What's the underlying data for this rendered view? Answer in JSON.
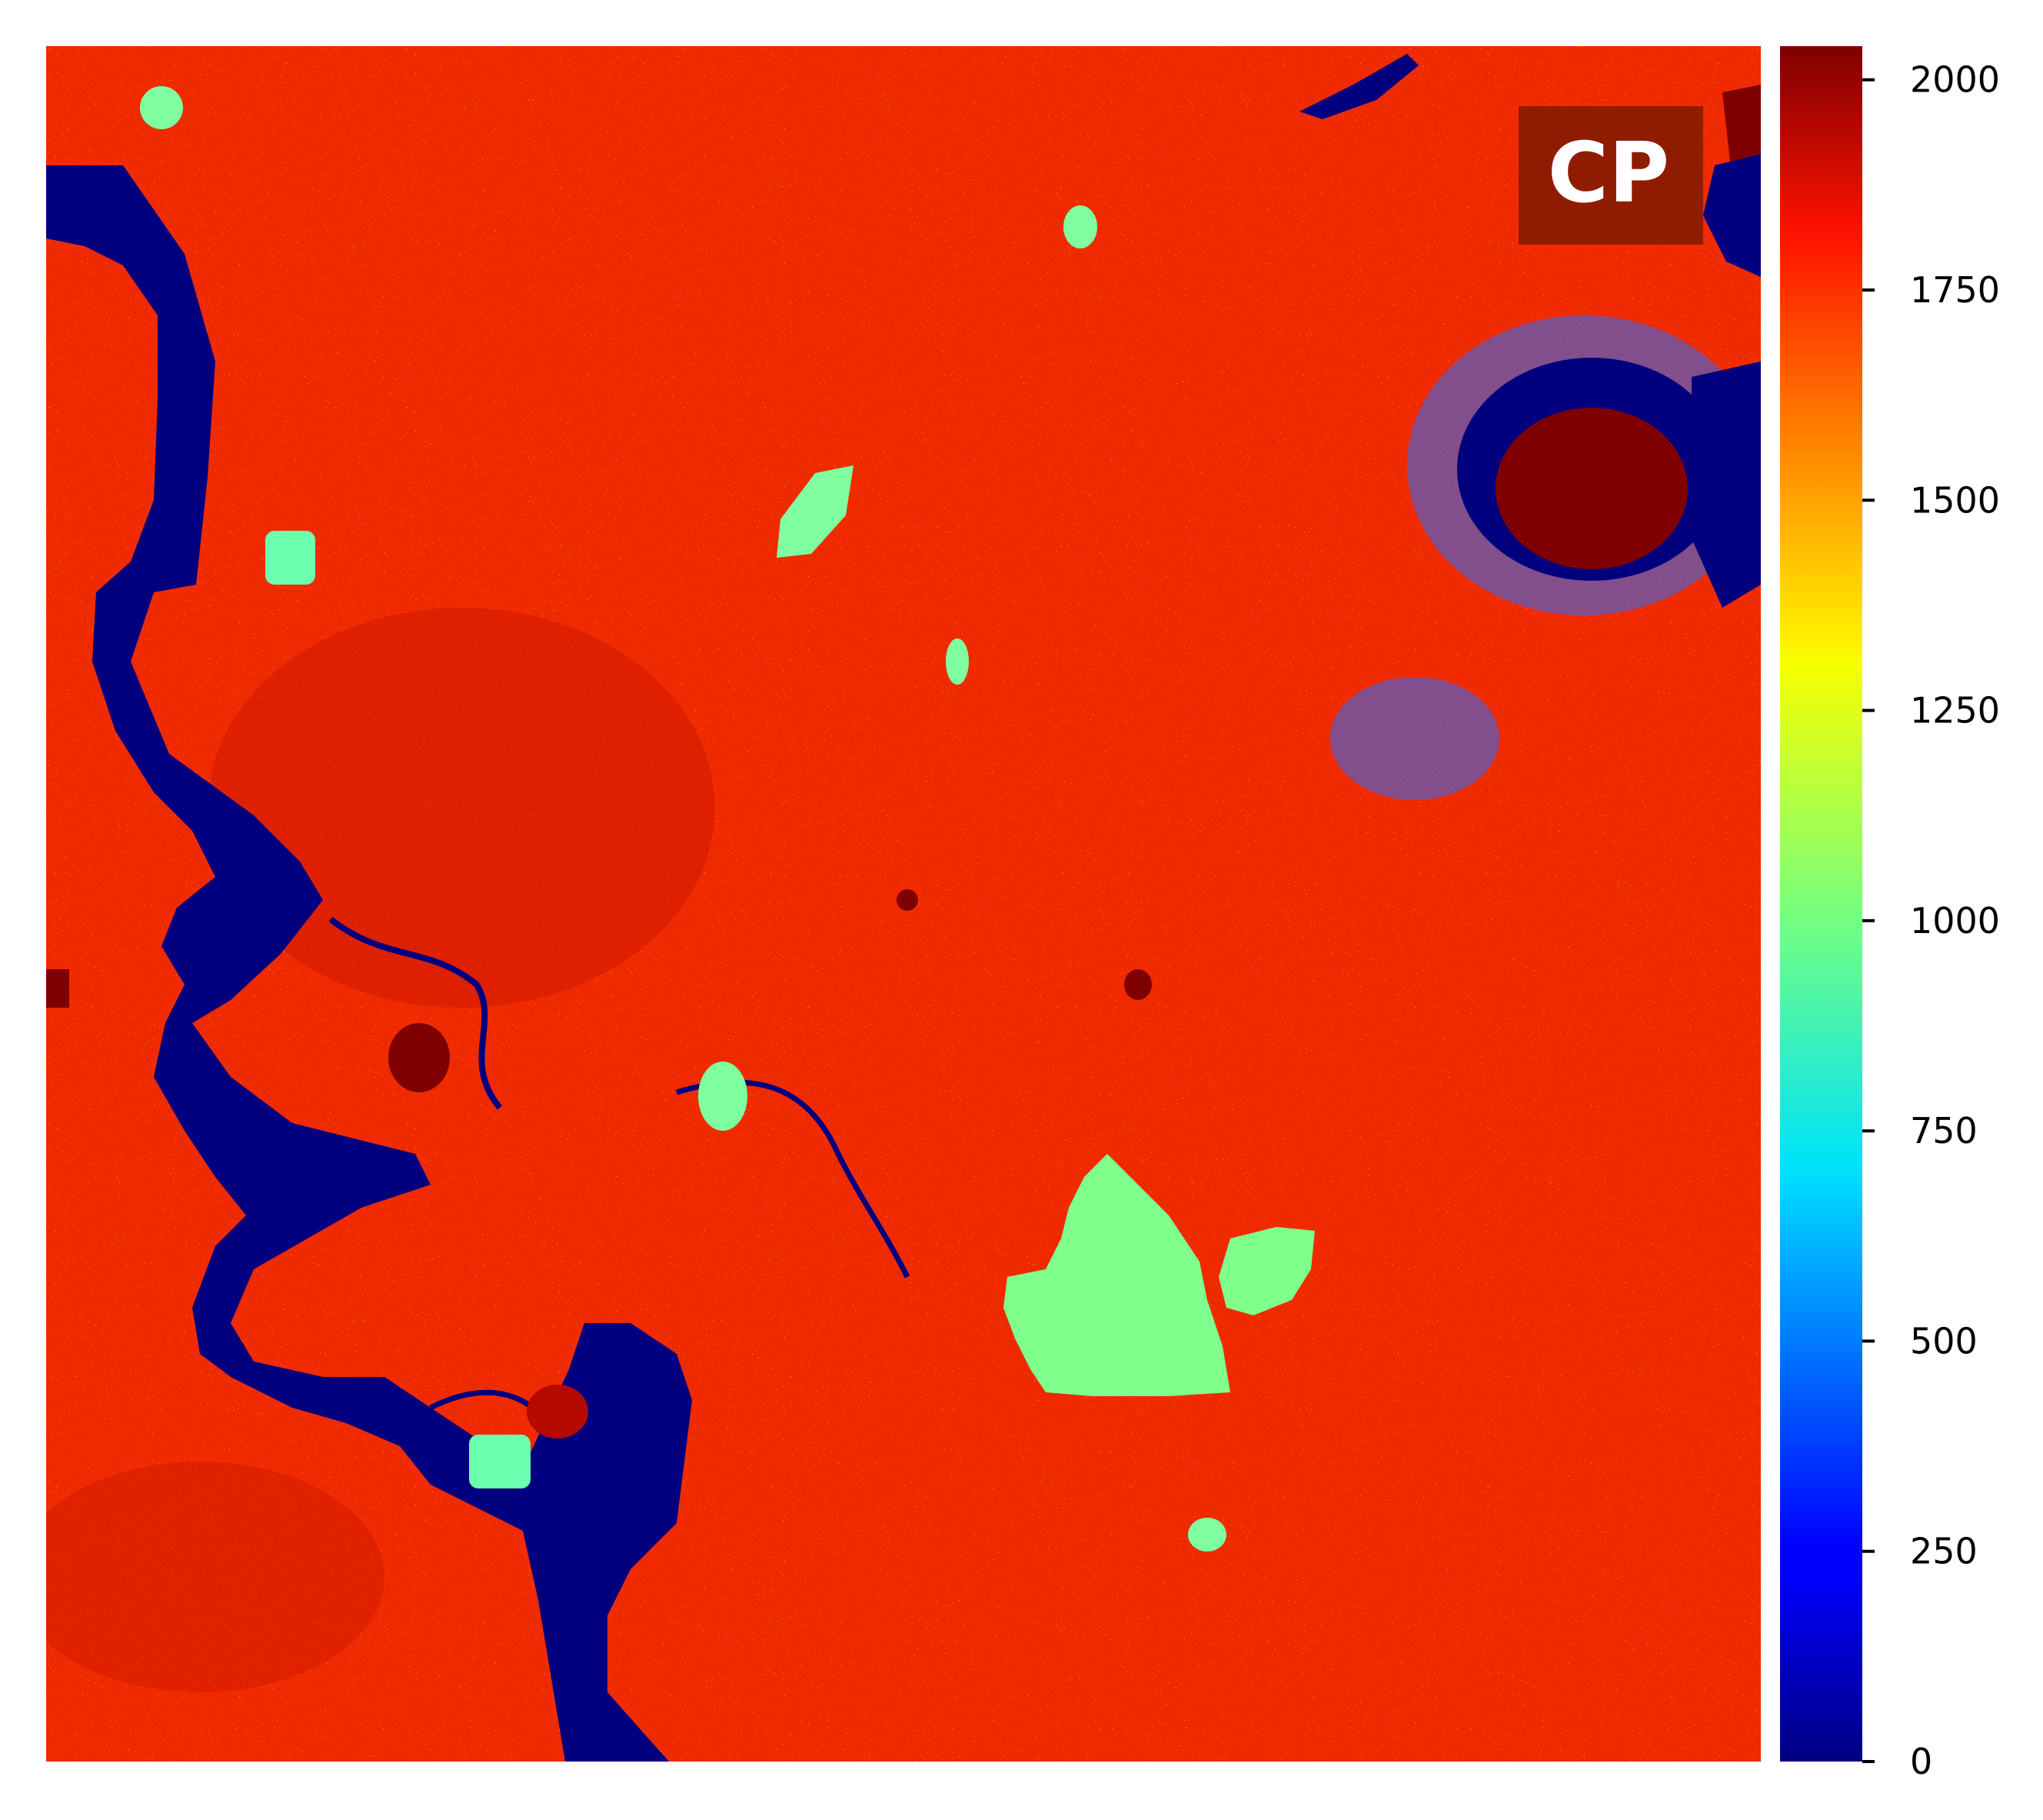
{
  "chart_data": {
    "type": "heatmap",
    "title": "",
    "xlabel": "",
    "ylabel": "",
    "badge": "CP",
    "colormap": "jet",
    "colorbar": {
      "min": 0,
      "max": 2040,
      "ticks": [
        0,
        250,
        500,
        750,
        1000,
        1250,
        1500,
        1750,
        2000
      ],
      "tick_labels": [
        "0",
        "250",
        "500",
        "750",
        "1000",
        "1250",
        "1500",
        "1750",
        "2000"
      ]
    },
    "background_value": 1850,
    "grid": false,
    "axes_ticks_visible": false,
    "regions": [
      {
        "kind": "river",
        "value": 0
      },
      {
        "kind": "lake",
        "value": 0
      },
      {
        "kind": "ring",
        "value": 0
      },
      {
        "kind": "patch",
        "value": 900
      },
      {
        "kind": "core",
        "value": 2040
      }
    ]
  },
  "colors": {
    "jet_low": "#00007f",
    "jet_mid": "#7fff7f",
    "jet_high": "#7f0000",
    "badge_bg": "#7f1a00"
  }
}
